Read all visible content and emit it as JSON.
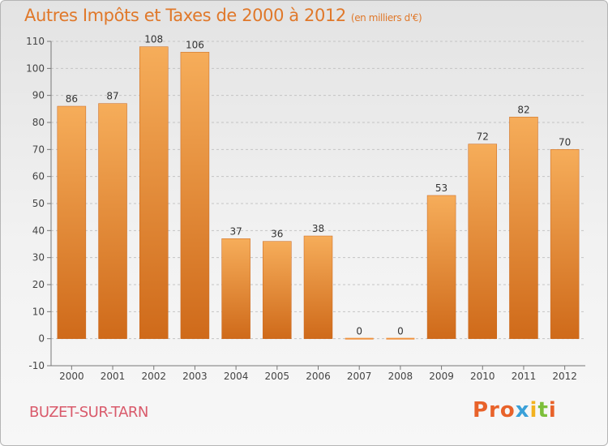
{
  "header": {
    "title": "Autres Impôts et Taxes de 2000 à 2012",
    "subtitle": "(en milliers d'€)"
  },
  "footer": {
    "commune": "BUZET-SUR-TARN",
    "logo_parts": [
      "Pro",
      "x",
      "i",
      "t",
      "i"
    ]
  },
  "colors": {
    "bar": "#f0923e",
    "bar_light": "#f6ad5a",
    "bar_dark": "#cf6a1a",
    "title": "#e0782a",
    "commune": "#d95a6b"
  },
  "chart_data": {
    "type": "bar",
    "title": "Autres Impôts et Taxes de 2000 à 2012",
    "subtitle": "(en milliers d'€)",
    "categories": [
      "2000",
      "2001",
      "2002",
      "2003",
      "2004",
      "2005",
      "2006",
      "2007",
      "2008",
      "2009",
      "2010",
      "2011",
      "2012"
    ],
    "values": [
      86,
      87,
      108,
      106,
      37,
      36,
      38,
      0,
      0,
      53,
      72,
      82,
      70
    ],
    "data_labels": [
      "86",
      "87",
      "108",
      "106",
      "37",
      "36",
      "38",
      "0",
      "0",
      "53",
      "72",
      "82",
      "70"
    ],
    "ylim": [
      -10,
      110
    ],
    "yticks": [
      -10,
      0,
      10,
      20,
      30,
      40,
      50,
      60,
      70,
      80,
      90,
      100,
      110
    ],
    "grid": "horizontal-dashed",
    "xlabel": "",
    "ylabel": ""
  }
}
